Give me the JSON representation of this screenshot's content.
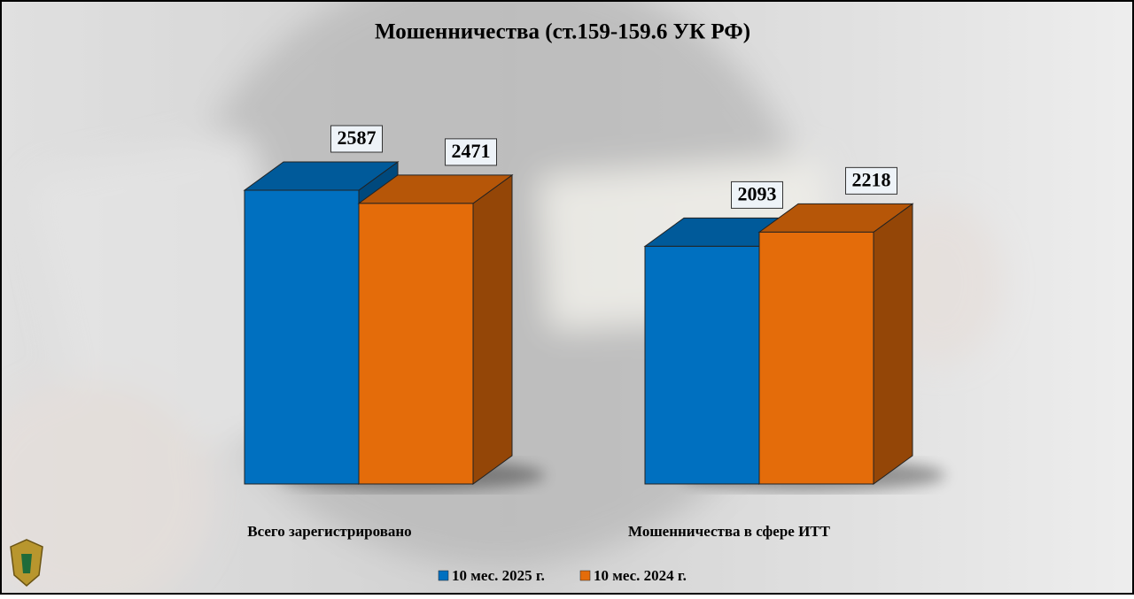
{
  "chart_data": {
    "type": "bar3d",
    "title": "Мошенничества (ст.159-159.6 УК РФ)",
    "categories": [
      "Всего зарегистрировано",
      "Мошенничества в сфере ИТТ"
    ],
    "series": [
      {
        "name": "10 мес. 2025 г.",
        "color": "#0070c0",
        "values": [
          2587,
          2093
        ]
      },
      {
        "name": "10 мес. 2024 г.",
        "color": "#e46c0a",
        "values": [
          2471,
          2218
        ]
      }
    ],
    "ylim": [
      0,
      3000
    ],
    "legend": "bottom"
  }
}
